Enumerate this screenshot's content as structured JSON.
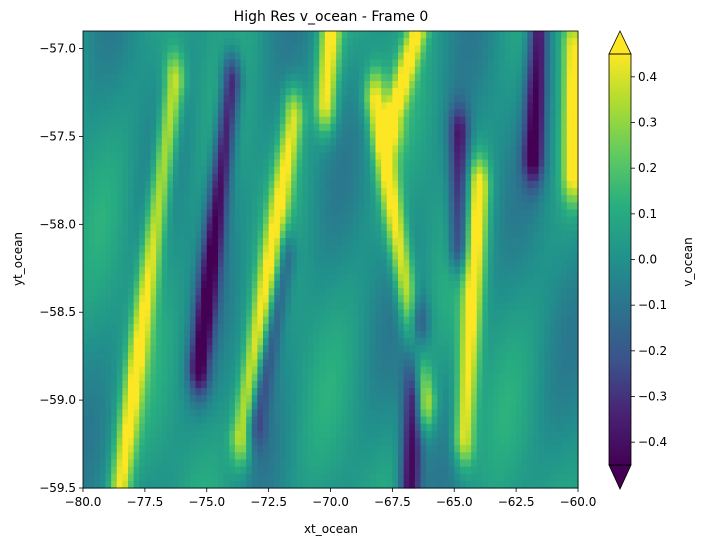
{
  "chart_data": {
    "type": "heatmap",
    "title": "High Res v_ocean - Frame 0",
    "xlabel": "xt_ocean",
    "ylabel": "yt_ocean",
    "xlim": [
      -80.0,
      -60.0
    ],
    "ylim": [
      -59.5,
      -56.9
    ],
    "x_ticks": [
      -80.0,
      -77.5,
      -75.0,
      -72.5,
      -70.0,
      -67.5,
      -65.0,
      -62.5,
      -60.0
    ],
    "x_tick_labels": [
      "−80.0",
      "−77.5",
      "−75.0",
      "−72.5",
      "−70.0",
      "−67.5",
      "−65.0",
      "−62.5",
      "−60.0"
    ],
    "y_ticks": [
      -57.0,
      -57.5,
      -58.0,
      -58.5,
      -59.0,
      -59.5
    ],
    "y_tick_labels": [
      "−57.0",
      "−57.5",
      "−58.0",
      "−58.5",
      "−59.0",
      "−59.5"
    ],
    "colorbar": {
      "label": "v_ocean",
      "vmin": -0.45,
      "vmax": 0.45,
      "extend": "both",
      "colormap": "viridis",
      "ticks": [
        0.4,
        0.3,
        0.2,
        0.1,
        0.0,
        -0.1,
        -0.2,
        -0.3,
        -0.4
      ],
      "tick_labels": [
        "0.4",
        "0.3",
        "0.2",
        "0.1",
        "0.0",
        "−0.1",
        "−0.2",
        "−0.3",
        "−0.4"
      ]
    },
    "grid": false,
    "features": [
      {
        "kind": "positive-streak",
        "x_top": -76.3,
        "x_bottom": -78.5,
        "y_top": -57.2,
        "y_bottom": -59.5,
        "peak": 0.42
      },
      {
        "kind": "positive-streak",
        "x_top": -71.5,
        "x_bottom": -73.6,
        "y_top": -57.4,
        "y_bottom": -59.2,
        "peak": 0.4
      },
      {
        "kind": "positive-streak",
        "x_top": -70.0,
        "x_bottom": -70.2,
        "y_top": -56.9,
        "y_bottom": -57.3,
        "peak": 0.45
      },
      {
        "kind": "positive-streak",
        "x_top": -68.2,
        "x_bottom": -66.2,
        "y_top": -57.3,
        "y_bottom": -59.0,
        "peak": 0.45
      },
      {
        "kind": "positive-streak",
        "x_top": -66.5,
        "x_bottom": -67.5,
        "y_top": -56.9,
        "y_bottom": -57.4,
        "peak": 0.42
      },
      {
        "kind": "positive-streak",
        "x_top": -64.0,
        "x_bottom": -64.6,
        "y_top": -57.8,
        "y_bottom": -59.2,
        "peak": 0.45
      },
      {
        "kind": "positive-streak",
        "x_top": -60.2,
        "x_bottom": -60.2,
        "y_top": -57.0,
        "y_bottom": -57.7,
        "peak": 0.42
      },
      {
        "kind": "negative-streak",
        "x_top": -74.0,
        "x_bottom": -75.3,
        "y_top": -57.2,
        "y_bottom": -58.8,
        "peak": -0.45
      },
      {
        "kind": "negative-streak",
        "x_top": -61.6,
        "x_bottom": -61.8,
        "y_top": -56.9,
        "y_bottom": -57.6,
        "peak": -0.45
      },
      {
        "kind": "negative-streak",
        "x_top": -66.5,
        "x_bottom": -66.8,
        "y_top": -58.6,
        "y_bottom": -59.5,
        "peak": -0.45
      },
      {
        "kind": "negative-streak",
        "x_top": -64.8,
        "x_bottom": -64.8,
        "y_top": -57.5,
        "y_bottom": -58.1,
        "peak": -0.38
      },
      {
        "kind": "negative-streak",
        "x_top": -71.8,
        "x_bottom": -73.0,
        "y_top": -58.2,
        "y_bottom": -59.1,
        "peak": -0.25
      }
    ]
  }
}
